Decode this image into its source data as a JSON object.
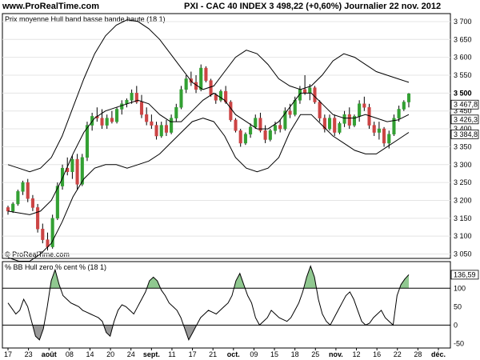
{
  "header": {
    "site": "www.ProRealTime.com",
    "title": "PXI - CAC 40 INDEX   3 498,22 (+0,60%)   Journalier  22 nov. 2012"
  },
  "top_panel": {
    "label": "Prix moyenne Hull band basse bande haute (18 1)",
    "copyright": "© ProRealTime.com"
  },
  "bottom_panel": {
    "label": "% BB Hull zero % cent % (18 1)"
  },
  "colors": {
    "up": "#33a033",
    "down": "#cc4444",
    "fill": "#90c890",
    "line": "#000000"
  },
  "chart_data": [
    {
      "type": "candlestick",
      "title": "PXI - CAC 40 INDEX",
      "ylim": [
        3040,
        3720
      ],
      "y_ticks": [
        3050,
        3100,
        3150,
        3200,
        3250,
        3300,
        3350,
        3400,
        3450,
        3500,
        3550,
        3600,
        3650,
        3700
      ],
      "y_tick_labels": [
        "3 050",
        "3 100",
        "3 150",
        "3 200",
        "3 250",
        "3 300",
        "3 350",
        "3 400",
        "3 450",
        "3 500",
        "3 550",
        "3 600",
        "3 650",
        "3 700"
      ],
      "value_markers": [
        {
          "label": "3 500",
          "value": 3500,
          "bold": true
        },
        {
          "label": "3 467,8",
          "value": 3467.8,
          "boxed": true
        },
        {
          "label": "3 426,3",
          "value": 3426.3,
          "boxed": true
        },
        {
          "label": "3 384,8",
          "value": 3384.8,
          "boxed": true
        }
      ],
      "x_labels": [
        "17",
        "23",
        "août",
        "08",
        "14",
        "20",
        "24",
        "sept.",
        "11",
        "17",
        "21",
        "oct.",
        "09",
        "15",
        "18",
        "25",
        "nov.",
        "12",
        "16",
        "22",
        "28",
        "déc."
      ],
      "x_label_bold": [
        false,
        false,
        true,
        false,
        false,
        false,
        false,
        true,
        false,
        false,
        false,
        true,
        false,
        false,
        false,
        false,
        true,
        false,
        false,
        false,
        false,
        true
      ],
      "candles": [
        [
          3180,
          3185,
          3160,
          3170
        ],
        [
          3170,
          3195,
          3165,
          3190
        ],
        [
          3190,
          3230,
          3185,
          3225
        ],
        [
          3225,
          3255,
          3215,
          3250
        ],
        [
          3250,
          3260,
          3195,
          3205
        ],
        [
          3205,
          3215,
          3170,
          3180
        ],
        [
          3180,
          3190,
          3110,
          3120
        ],
        [
          3120,
          3135,
          3080,
          3090
        ],
        [
          3090,
          3110,
          3060,
          3070
        ],
        [
          3070,
          3160,
          3065,
          3150
        ],
        [
          3150,
          3250,
          3145,
          3240
        ],
        [
          3240,
          3300,
          3230,
          3290
        ],
        [
          3290,
          3320,
          3270,
          3280
        ],
        [
          3280,
          3325,
          3260,
          3315
        ],
        [
          3315,
          3330,
          3230,
          3245
        ],
        [
          3245,
          3330,
          3240,
          3320
        ],
        [
          3320,
          3420,
          3310,
          3410
        ],
        [
          3410,
          3445,
          3395,
          3435
        ],
        [
          3435,
          3460,
          3420,
          3430
        ],
        [
          3430,
          3455,
          3400,
          3410
        ],
        [
          3410,
          3440,
          3400,
          3430
        ],
        [
          3430,
          3450,
          3415,
          3420
        ],
        [
          3420,
          3460,
          3415,
          3455
        ],
        [
          3455,
          3480,
          3440,
          3470
        ],
        [
          3470,
          3485,
          3460,
          3480
        ],
        [
          3480,
          3510,
          3470,
          3500
        ],
        [
          3500,
          3520,
          3470,
          3475
        ],
        [
          3475,
          3495,
          3430,
          3440
        ],
        [
          3440,
          3460,
          3410,
          3420
        ],
        [
          3420,
          3440,
          3400,
          3410
        ],
        [
          3410,
          3420,
          3370,
          3380
        ],
        [
          3380,
          3420,
          3375,
          3410
        ],
        [
          3410,
          3425,
          3380,
          3390
        ],
        [
          3390,
          3440,
          3385,
          3430
        ],
        [
          3430,
          3470,
          3420,
          3460
        ],
        [
          3460,
          3520,
          3455,
          3510
        ],
        [
          3510,
          3550,
          3500,
          3540
        ],
        [
          3540,
          3560,
          3520,
          3530
        ],
        [
          3530,
          3550,
          3500,
          3510
        ],
        [
          3510,
          3580,
          3505,
          3570
        ],
        [
          3570,
          3575,
          3530,
          3535
        ],
        [
          3535,
          3540,
          3490,
          3495
        ],
        [
          3495,
          3500,
          3470,
          3480
        ],
        [
          3480,
          3510,
          3475,
          3505
        ],
        [
          3505,
          3520,
          3470,
          3475
        ],
        [
          3475,
          3480,
          3420,
          3425
        ],
        [
          3425,
          3430,
          3390,
          3395
        ],
        [
          3395,
          3400,
          3350,
          3360
        ],
        [
          3360,
          3390,
          3355,
          3385
        ],
        [
          3385,
          3415,
          3375,
          3405
        ],
        [
          3405,
          3440,
          3400,
          3430
        ],
        [
          3430,
          3445,
          3390,
          3395
        ],
        [
          3395,
          3410,
          3360,
          3370
        ],
        [
          3370,
          3400,
          3365,
          3395
        ],
        [
          3395,
          3420,
          3385,
          3410
        ],
        [
          3410,
          3425,
          3390,
          3400
        ],
        [
          3400,
          3460,
          3395,
          3450
        ],
        [
          3450,
          3470,
          3430,
          3440
        ],
        [
          3440,
          3490,
          3435,
          3480
        ],
        [
          3480,
          3520,
          3470,
          3510
        ],
        [
          3510,
          3550,
          3495,
          3500
        ],
        [
          3500,
          3525,
          3480,
          3515
        ],
        [
          3515,
          3520,
          3470,
          3475
        ],
        [
          3475,
          3480,
          3420,
          3430
        ],
        [
          3430,
          3440,
          3390,
          3400
        ],
        [
          3400,
          3440,
          3395,
          3430
        ],
        [
          3430,
          3440,
          3380,
          3390
        ],
        [
          3390,
          3420,
          3385,
          3415
        ],
        [
          3415,
          3450,
          3405,
          3440
        ],
        [
          3440,
          3460,
          3400,
          3410
        ],
        [
          3410,
          3440,
          3405,
          3435
        ],
        [
          3435,
          3480,
          3420,
          3470
        ],
        [
          3470,
          3490,
          3450,
          3460
        ],
        [
          3460,
          3470,
          3400,
          3410
        ],
        [
          3410,
          3420,
          3380,
          3390
        ],
        [
          3390,
          3420,
          3370,
          3400
        ],
        [
          3400,
          3405,
          3350,
          3360
        ],
        [
          3360,
          3395,
          3345,
          3385
        ],
        [
          3385,
          3440,
          3380,
          3430
        ],
        [
          3430,
          3465,
          3420,
          3455
        ],
        [
          3455,
          3480,
          3450,
          3475
        ],
        [
          3475,
          3500,
          3460,
          3498
        ]
      ],
      "series": [
        {
          "name": "bande haute",
          "values": [
            3300,
            3290,
            3280,
            3290,
            3320,
            3380,
            3460,
            3540,
            3610,
            3660,
            3690,
            3705,
            3700,
            3680,
            3650,
            3610,
            3570,
            3530,
            3510,
            3520,
            3560,
            3600,
            3620,
            3610,
            3580,
            3540,
            3520,
            3510,
            3520,
            3550,
            3590,
            3610,
            3600,
            3580,
            3560,
            3550,
            3540,
            3530
          ],
          "x_from": 0,
          "x_step": 2.35
        },
        {
          "name": "Prix moyenne Hull",
          "values": [
            3170,
            3165,
            3160,
            3170,
            3200,
            3260,
            3330,
            3390,
            3430,
            3450,
            3460,
            3470,
            3480,
            3470,
            3440,
            3420,
            3420,
            3450,
            3480,
            3500,
            3480,
            3440,
            3420,
            3400,
            3400,
            3420,
            3460,
            3500,
            3500,
            3470,
            3440,
            3430,
            3430,
            3440,
            3430,
            3420,
            3425,
            3440
          ],
          "x_from": 0,
          "x_step": 2.35
        },
        {
          "name": "bande basse",
          "values": [
            3040,
            3030,
            3030,
            3050,
            3080,
            3140,
            3210,
            3260,
            3290,
            3300,
            3300,
            3290,
            3300,
            3310,
            3330,
            3360,
            3390,
            3420,
            3430,
            3420,
            3380,
            3320,
            3290,
            3280,
            3290,
            3320,
            3390,
            3440,
            3440,
            3410,
            3380,
            3360,
            3340,
            3330,
            3330,
            3350,
            3370,
            3390
          ],
          "x_from": 0,
          "x_step": 2.35
        }
      ]
    },
    {
      "type": "line",
      "title": "% BB Hull zero % cent % (18 1)",
      "ylim": [
        -60,
        170
      ],
      "y_ticks": [
        -50,
        0,
        50,
        100
      ],
      "y_tick_labels": [
        "-50",
        "0",
        "50",
        "100"
      ],
      "reference_lines": [
        0,
        100
      ],
      "value_markers": [
        {
          "label": "136,59",
          "value": 136.59,
          "boxed": true
        }
      ],
      "series": [
        {
          "name": "% BB Hull",
          "values": [
            60,
            45,
            30,
            40,
            70,
            50,
            10,
            -30,
            -40,
            -10,
            50,
            120,
            150,
            110,
            80,
            70,
            60,
            55,
            50,
            40,
            35,
            30,
            25,
            20,
            10,
            -20,
            -30,
            10,
            40,
            55,
            50,
            40,
            30,
            50,
            70,
            90,
            120,
            130,
            120,
            95,
            80,
            60,
            50,
            40,
            20,
            -10,
            -40,
            -20,
            0,
            20,
            30,
            40,
            35,
            30,
            40,
            50,
            60,
            80,
            120,
            140,
            110,
            80,
            60,
            20,
            0,
            10,
            20,
            40,
            30,
            20,
            15,
            10,
            20,
            40,
            60,
            90,
            130,
            160,
            130,
            70,
            30,
            10,
            0,
            20,
            40,
            60,
            80,
            90,
            70,
            40,
            10,
            0,
            5,
            20,
            30,
            40,
            20,
            10,
            0,
            80,
            110,
            125,
            136.59
          ]
        }
      ]
    }
  ]
}
